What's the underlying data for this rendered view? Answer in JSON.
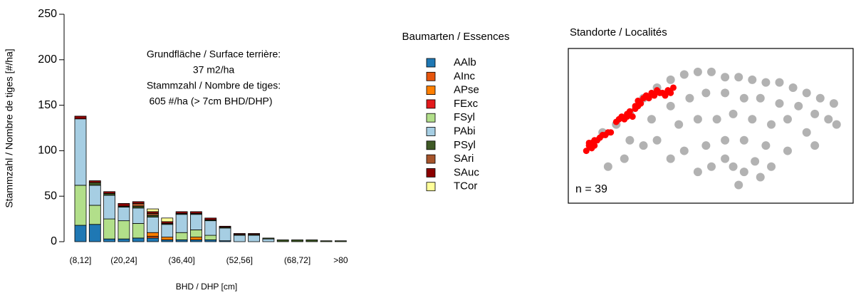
{
  "chart_data": [
    {
      "type": "bar",
      "stacked": true,
      "annotations": [
        "Grundfläche / Surface terrière:",
        "37 m2/ha",
        "Stammzahl / Nombre de tiges:",
        "605 #/ha (> 7cm BHD/DHP)"
      ],
      "x_label": "BHD / DHP [cm]",
      "y_label": "Stammzahl / Nombre de tiges [#/ha]",
      "legend_title": "Baumarten / Essences",
      "categories": [
        "(8,12]",
        null,
        null,
        "(20,24]",
        null,
        null,
        null,
        "(36,40]",
        null,
        null,
        null,
        "(52,56]",
        null,
        null,
        null,
        "(68,72]",
        null,
        null,
        ">80"
      ],
      "ylim": [
        0,
        250
      ],
      "yticks": [
        0,
        50,
        100,
        150,
        200,
        250
      ],
      "series": [
        {
          "name": "AAlb",
          "color": "#1f78b4",
          "values": [
            18,
            19,
            3,
            3,
            4,
            4,
            2,
            2,
            2,
            2,
            1,
            0,
            0,
            0,
            0,
            0,
            0,
            0,
            0
          ]
        },
        {
          "name": "AInc",
          "color": "#e6550d",
          "values": [
            0,
            0,
            0,
            0,
            0,
            2,
            0,
            0,
            0,
            0,
            0,
            0,
            0,
            0,
            0,
            0,
            0,
            0,
            0
          ]
        },
        {
          "name": "APse",
          "color": "#ff7f00",
          "values": [
            0,
            0,
            0,
            0,
            0,
            4,
            3,
            0,
            3,
            0,
            0,
            0,
            0,
            0,
            0,
            0,
            0,
            0,
            0
          ]
        },
        {
          "name": "FExc",
          "color": "#e31a1c",
          "values": [
            0,
            0,
            0,
            0,
            0,
            0,
            0,
            0,
            0,
            0,
            0,
            0,
            0,
            0,
            0,
            0,
            0,
            0,
            0
          ]
        },
        {
          "name": "FSyl",
          "color": "#b2df8a",
          "values": [
            44,
            21,
            22,
            20,
            16,
            0,
            0,
            8,
            8,
            5,
            0,
            0,
            0,
            0,
            0,
            0,
            0,
            0,
            0
          ]
        },
        {
          "name": "PAbi",
          "color": "#a6cee3",
          "values": [
            73,
            22,
            26,
            15,
            17,
            17,
            14,
            20,
            17,
            16,
            14,
            7,
            7,
            3,
            0,
            0,
            0,
            0,
            0
          ]
        },
        {
          "name": "PSyl",
          "color": "#3f5a26",
          "values": [
            0,
            3,
            2,
            1,
            2,
            2,
            1,
            1,
            1,
            1,
            1,
            1,
            1,
            1,
            2,
            2,
            2,
            1,
            1
          ]
        },
        {
          "name": "SAri",
          "color": "#a6542a",
          "values": [
            0,
            0,
            0,
            0,
            3,
            2,
            0,
            0,
            0,
            0,
            0,
            0,
            0,
            0,
            0,
            0,
            0,
            0,
            0
          ]
        },
        {
          "name": "SAuc",
          "color": "#8b0000",
          "values": [
            3,
            2,
            2,
            3,
            2,
            2,
            2,
            2,
            2,
            2,
            1,
            1,
            1,
            0,
            0,
            0,
            0,
            0,
            0
          ]
        },
        {
          "name": "TCor",
          "color": "#ffff99",
          "values": [
            0,
            0,
            0,
            0,
            0,
            3,
            4,
            0,
            0,
            0,
            0,
            0,
            0,
            0,
            0,
            0,
            0,
            0,
            0
          ]
        }
      ]
    },
    {
      "type": "scatter",
      "title": "Standorte / Localités",
      "annotation": "n = 39",
      "xlim": [
        0,
        100
      ],
      "ylim": [
        0,
        55
      ],
      "series": [
        {
          "color": "#555555",
          "x": [
            10,
            15,
            20,
            25,
            30,
            35,
            40,
            45,
            50,
            55,
            60,
            65,
            70,
            75,
            80,
            85,
            90,
            95,
            20,
            28,
            35,
            42,
            48,
            55,
            62,
            68,
            75,
            82,
            88,
            93,
            30,
            38,
            45,
            52,
            58,
            65,
            72,
            78,
            85,
            40,
            48,
            55,
            62,
            70,
            78,
            58,
            62,
            66,
            55,
            60,
            68,
            72,
            35,
            45,
            50,
            25,
            18,
            12,
            88,
            96
          ],
          "y": [
            25,
            28,
            32,
            38,
            42,
            45,
            47,
            48,
            48,
            46,
            46,
            45,
            44,
            44,
            42,
            40,
            38,
            36,
            22,
            30,
            35,
            38,
            40,
            40,
            38,
            38,
            36,
            35,
            32,
            30,
            22,
            28,
            30,
            30,
            32,
            30,
            28,
            30,
            25,
            18,
            20,
            22,
            22,
            20,
            18,
            12,
            10,
            14,
            15,
            5,
            8,
            12,
            15,
            10,
            12,
            20,
            15,
            12,
            20,
            28
          ]
        },
        {
          "color": "#ff0000",
          "x": [
            4,
            5,
            5,
            6,
            6,
            7,
            7,
            8,
            9,
            10,
            11,
            12,
            13,
            15,
            16,
            17,
            18,
            19,
            19,
            20,
            21,
            22,
            23,
            24,
            22,
            23,
            24,
            25,
            26,
            27,
            28,
            29,
            30,
            31,
            32,
            33,
            34,
            35,
            36
          ],
          "y": [
            18,
            20,
            21,
            19,
            21,
            20,
            22,
            22,
            23,
            24,
            24,
            25,
            25,
            29,
            30,
            31,
            30,
            31,
            32,
            33,
            31,
            34,
            35,
            36,
            35,
            37,
            36,
            38,
            39,
            38,
            40,
            39,
            41,
            40,
            40,
            39,
            41,
            40,
            42
          ]
        }
      ]
    }
  ]
}
